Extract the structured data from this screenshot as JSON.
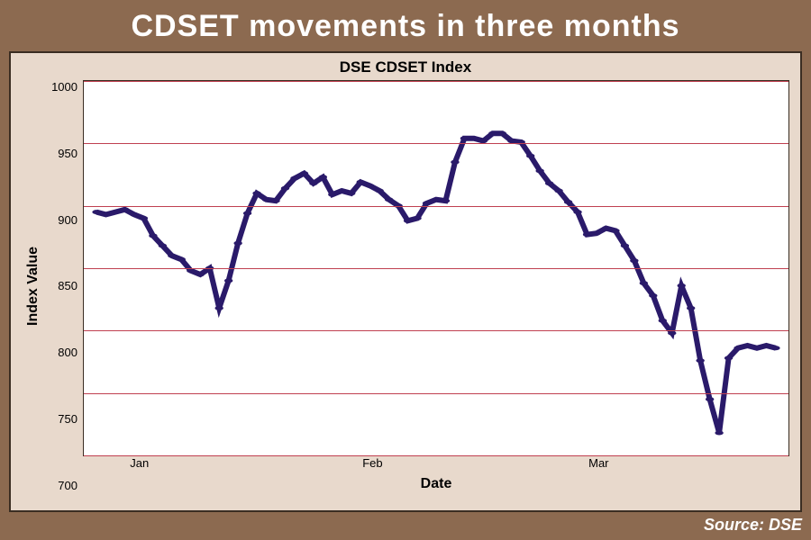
{
  "headline": "CDSET movements in three months",
  "source_label": "Source: DSE",
  "chart": {
    "type": "line",
    "title": "DSE CDSET Index",
    "xlabel": "Date",
    "ylabel": "Index Value",
    "ylim": [
      700,
      1000
    ],
    "ytick_step": 50,
    "yticks": [
      1000,
      950,
      900,
      850,
      800,
      750,
      700
    ],
    "xticks": [
      {
        "label": "Jan",
        "pos_pct": 8
      },
      {
        "label": "Feb",
        "pos_pct": 41
      },
      {
        "label": "Mar",
        "pos_pct": 73
      }
    ],
    "background_color": "#ffffff",
    "panel_bg_color": "#e8d9cc",
    "outer_bg_color": "#8c6a50",
    "grid_color": "#c04050",
    "grid_width": 1,
    "axis_color": "#3a2d22",
    "line_color": "#2a1a6a",
    "line_width": 2,
    "marker_color": "#2a1a6a",
    "marker_size": 3,
    "headline_color": "#ffffff",
    "headline_fontsize": 34,
    "title_fontsize": 17,
    "label_fontsize": 16,
    "tick_fontsize": 13,
    "font_family": "Arial",
    "values": [
      895,
      893,
      895,
      897,
      893,
      890,
      876,
      868,
      860,
      857,
      848,
      845,
      850,
      818,
      840,
      870,
      894,
      910,
      905,
      904,
      914,
      922,
      926,
      918,
      923,
      909,
      912,
      910,
      919,
      916,
      912,
      905,
      900,
      888,
      890,
      902,
      905,
      904,
      935,
      954,
      954,
      952,
      958,
      958,
      952,
      951,
      940,
      928,
      918,
      912,
      903,
      895,
      877,
      878,
      882,
      880,
      868,
      856,
      838,
      828,
      808,
      798,
      836,
      818,
      776,
      745,
      718,
      778,
      786,
      788,
      786,
      788,
      786
    ]
  }
}
